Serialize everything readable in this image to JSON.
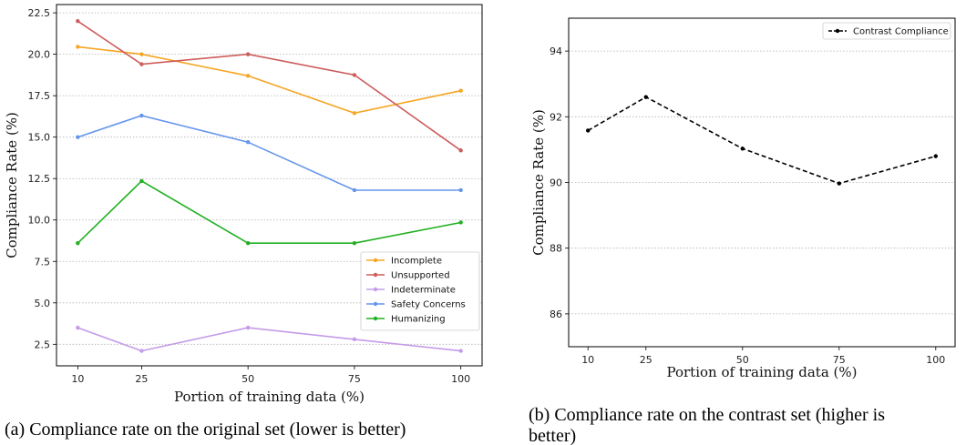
{
  "chart_data": [
    {
      "type": "line",
      "x": [
        10,
        25,
        50,
        75,
        100
      ],
      "xlabel": "Portion of training data (%)",
      "ylabel": "Compliance Rate (%)",
      "xlim": [
        5,
        105
      ],
      "ylim": [
        1.2,
        23.0
      ],
      "yticks": [
        "2.5",
        "5.0",
        "7.5",
        "10.0",
        "12.5",
        "15.0",
        "17.5",
        "20.0",
        "22.5"
      ],
      "xticks": [
        "10",
        "25",
        "50",
        "75",
        "100"
      ],
      "grid": "horizontal dotted",
      "legend": "lower-right",
      "series": [
        {
          "name": "Incomplete",
          "color": "#f5a623",
          "values": [
            20.45,
            20.0,
            18.7,
            16.45,
            17.8
          ]
        },
        {
          "name": "Unsupported",
          "color": "#cd5c5c",
          "values": [
            22.0,
            19.4,
            20.0,
            18.75,
            14.2
          ]
        },
        {
          "name": "Indeterminate",
          "color": "#c49be8",
          "values": [
            3.5,
            2.1,
            3.5,
            2.8,
            2.1
          ]
        },
        {
          "name": "Safety Concerns",
          "color": "#6495ed",
          "values": [
            15.0,
            16.3,
            14.7,
            11.8,
            11.8
          ]
        },
        {
          "name": "Humanizing",
          "color": "#22b022",
          "values": [
            8.6,
            12.35,
            8.6,
            8.6,
            9.85
          ]
        }
      ],
      "caption": "(a) Compliance rate on the original set (lower is better)"
    },
    {
      "type": "line",
      "x": [
        10,
        25,
        50,
        75,
        100
      ],
      "xlabel": "Portion of training data (%)",
      "ylabel": "Compliance Rate (%)",
      "xlim": [
        5,
        105
      ],
      "ylim": [
        85.0,
        95.0
      ],
      "yticks": [
        "86",
        "88",
        "90",
        "92",
        "94"
      ],
      "xticks": [
        "10",
        "25",
        "50",
        "75",
        "100"
      ],
      "grid": "horizontal dotted",
      "legend": "top-right",
      "series": [
        {
          "name": "Contrast Compliance",
          "color": "#000000",
          "dashed": true,
          "values": [
            91.58,
            92.6,
            91.03,
            89.97,
            90.8
          ]
        }
      ],
      "caption_lines": [
        "(b) Compliance rate on the contrast set (higher is",
        "better)"
      ]
    }
  ]
}
